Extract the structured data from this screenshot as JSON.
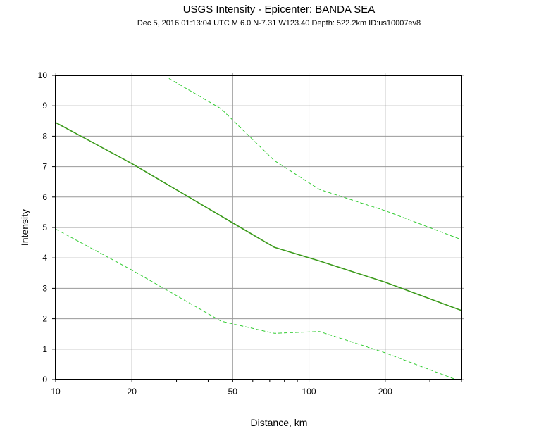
{
  "chart_data": {
    "type": "line",
    "title": "USGS Intensity -  Epicenter: BANDA SEA",
    "subtitle": "Dec  5, 2016 01:13:04 UTC   M 6.0   N-7.31 W123.40   Depth: 522.2km   ID:us10007ev8",
    "xlabel": "Distance, km",
    "ylabel": "Intensity",
    "xscale": "log",
    "xlim": [
      10,
      400
    ],
    "ylim": [
      0,
      10
    ],
    "xticks": [
      10,
      20,
      50,
      100,
      200
    ],
    "xtick_labels": [
      "10",
      "20",
      "50",
      "100",
      "200"
    ],
    "yticks": [
      0,
      1,
      2,
      3,
      4,
      5,
      6,
      7,
      8,
      9,
      10
    ],
    "ytick_labels": [
      "0",
      "1",
      "2",
      "3",
      "4",
      "5",
      "6",
      "7",
      "8",
      "9",
      "10"
    ],
    "grid": true,
    "series": [
      {
        "style": "solid",
        "color": "#3a9a1a",
        "x": [
          10,
          20,
          50,
          73,
          110,
          200,
          400
        ],
        "y": [
          8.45,
          7.1,
          5.15,
          4.35,
          3.9,
          3.2,
          2.27
        ]
      },
      {
        "style": "dashed",
        "color": "#33cc33",
        "x": [
          28,
          45,
          73,
          110,
          200,
          400
        ],
        "y": [
          9.9,
          8.9,
          7.2,
          6.25,
          5.55,
          4.6
        ]
      },
      {
        "style": "dashed",
        "color": "#33cc33",
        "x": [
          10,
          20,
          45,
          73,
          110,
          200,
          380
        ],
        "y": [
          4.95,
          3.6,
          1.92,
          1.52,
          1.58,
          0.88,
          0.0
        ]
      }
    ]
  }
}
